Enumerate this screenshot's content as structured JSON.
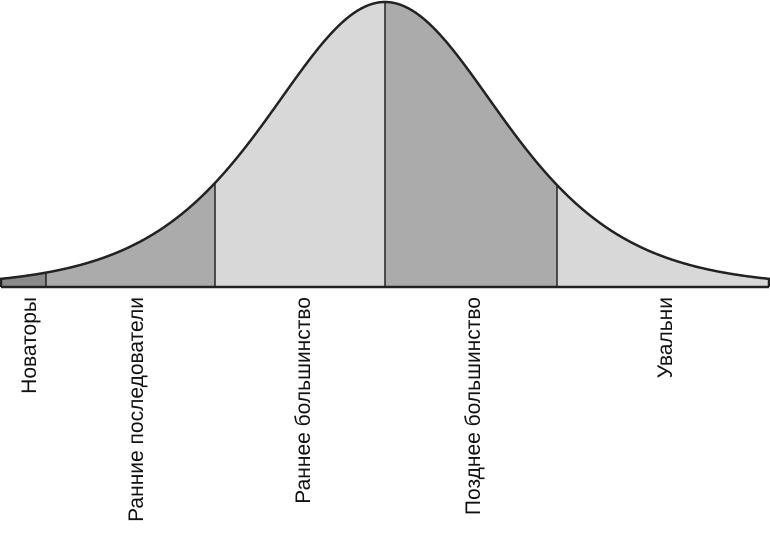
{
  "segments": [
    {
      "label": "Новаторы"
    },
    {
      "label": "Ранние последователи"
    },
    {
      "label": "Раннее большинство"
    },
    {
      "label": "Позднее большинство"
    },
    {
      "label": "Увальни"
    }
  ]
}
